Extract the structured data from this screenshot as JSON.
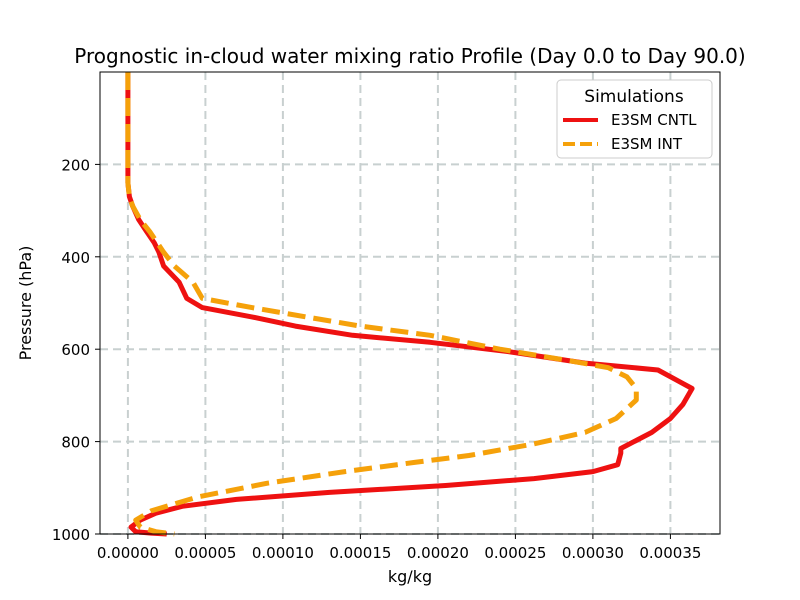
{
  "chart_data": {
    "type": "line",
    "title": "Prognostic in-cloud water mixing ratio Profile (Day 0.0 to Day 90.0)",
    "xlabel": "kg/kg",
    "ylabel": "Pressure (hPa)",
    "xlim": [
      -1.8e-05,
      0.000382
    ],
    "ylim": [
      1000,
      0
    ],
    "y_inverted": true,
    "grid": true,
    "x_ticks": [
      0.0,
      5e-05,
      0.0001,
      0.00015,
      0.0002,
      0.00025,
      0.0003,
      0.00035
    ],
    "x_tick_labels": [
      "0.00000",
      "0.00005",
      "0.00010",
      "0.00015",
      "0.00020",
      "0.00025",
      "0.00030",
      "0.00035"
    ],
    "y_ticks": [
      200,
      400,
      600,
      800,
      1000
    ],
    "y_tick_labels": [
      "200",
      "400",
      "600",
      "800",
      "1000"
    ],
    "legend": {
      "title": "Simulations",
      "position": "upper right"
    },
    "series": [
      {
        "name": "E3SM CNTL",
        "color": "#ee1111",
        "style": "solid",
        "points": [
          [
            0.0,
            0
          ],
          [
            0.0,
            100
          ],
          [
            0.0,
            200
          ],
          [
            0.0,
            240
          ],
          [
            1e-06,
            270
          ],
          [
            3e-06,
            290
          ],
          [
            7e-06,
            320
          ],
          [
            1.2e-05,
            345
          ],
          [
            1.7e-05,
            370
          ],
          [
            2e-05,
            390
          ],
          [
            2.3e-05,
            420
          ],
          [
            3.3e-05,
            455
          ],
          [
            3.8e-05,
            490
          ],
          [
            4.8e-05,
            510
          ],
          [
            8e-05,
            530
          ],
          [
            0.000108,
            550
          ],
          [
            0.000145,
            570
          ],
          [
            0.000195,
            585
          ],
          [
            0.000245,
            605
          ],
          [
            0.000295,
            630
          ],
          [
            0.000342,
            645
          ],
          [
            0.000364,
            685
          ],
          [
            0.000358,
            720
          ],
          [
            0.00035,
            750
          ],
          [
            0.000338,
            780
          ],
          [
            0.000318,
            815
          ],
          [
            0.000318,
            825
          ],
          [
            0.000316,
            850
          ],
          [
            0.0003,
            865
          ],
          [
            0.000262,
            880
          ],
          [
            0.000205,
            895
          ],
          [
            0.00013,
            910
          ],
          [
            7e-05,
            925
          ],
          [
            3.5e-05,
            940
          ],
          [
            1.8e-05,
            955
          ],
          [
            8e-06,
            970
          ],
          [
            2e-06,
            985
          ],
          [
            5e-06,
            995
          ],
          [
            1.5e-05,
            998
          ],
          [
            2.5e-05,
            1000
          ]
        ]
      },
      {
        "name": "E3SM INT",
        "color": "#f5a10a",
        "style": "dashed",
        "points": [
          [
            0.0,
            0
          ],
          [
            0.0,
            100
          ],
          [
            0.0,
            200
          ],
          [
            0.0,
            240
          ],
          [
            1e-06,
            270
          ],
          [
            3e-06,
            290
          ],
          [
            8e-06,
            320
          ],
          [
            1.4e-05,
            345
          ],
          [
            1.9e-05,
            370
          ],
          [
            2.3e-05,
            390
          ],
          [
            3e-05,
            420
          ],
          [
            4.2e-05,
            455
          ],
          [
            4.8e-05,
            490
          ],
          [
            8e-05,
            510
          ],
          [
            0.000115,
            530
          ],
          [
            0.00015,
            550
          ],
          [
            0.000195,
            570
          ],
          [
            0.00024,
            600
          ],
          [
            0.000285,
            625
          ],
          [
            0.00031,
            640
          ],
          [
            0.000322,
            660
          ],
          [
            0.000328,
            685
          ],
          [
            0.000328,
            710
          ],
          [
            0.000315,
            750
          ],
          [
            0.000295,
            780
          ],
          [
            0.000262,
            805
          ],
          [
            0.00022,
            830
          ],
          [
            0.000185,
            845
          ],
          [
            0.00014,
            865
          ],
          [
            9e-05,
            890
          ],
          [
            4.5e-05,
            920
          ],
          [
            1.5e-05,
            950
          ],
          [
            5e-06,
            970
          ],
          [
            8e-06,
            985
          ],
          [
            1.8e-05,
            995
          ],
          [
            3e-05,
            1000
          ]
        ]
      }
    ]
  }
}
